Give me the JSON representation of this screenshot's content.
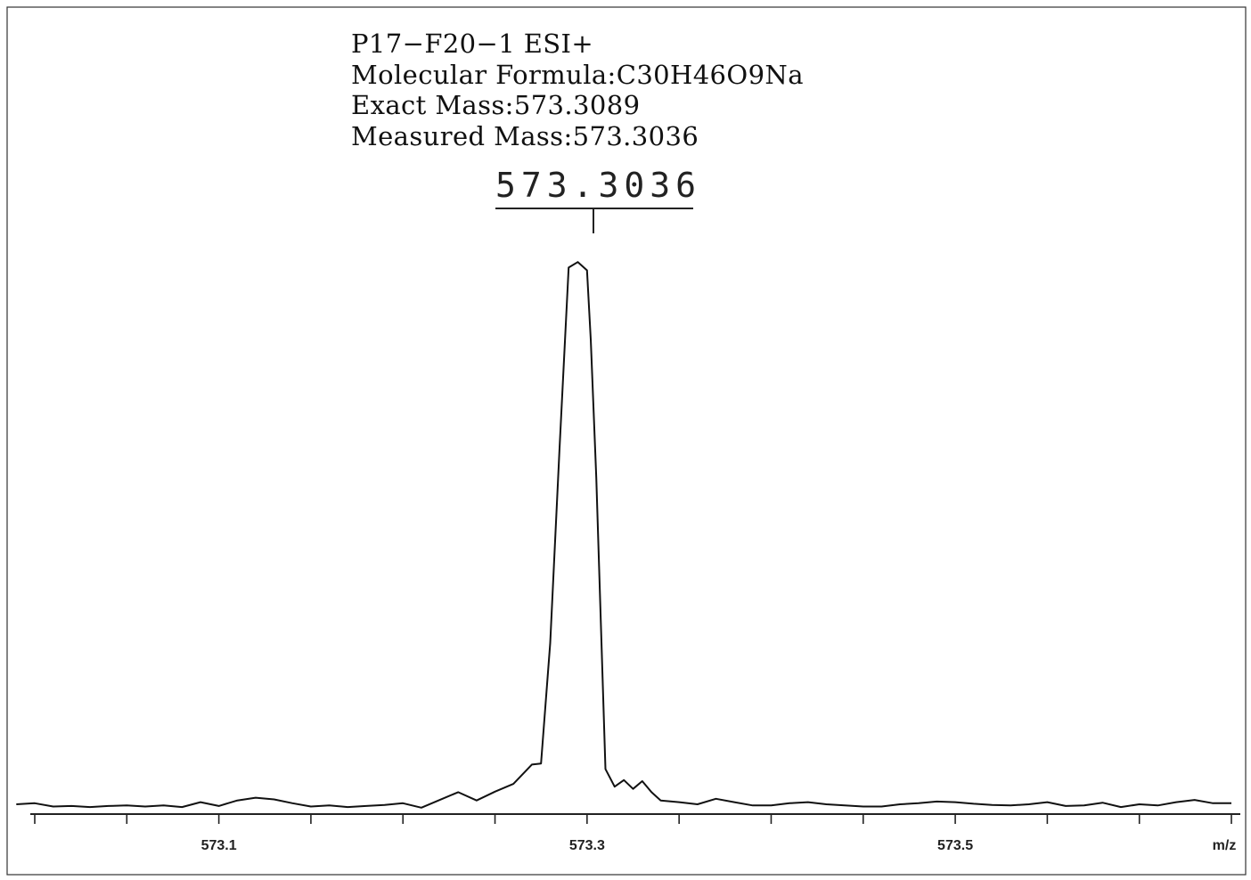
{
  "header": {
    "line1": "P17−F20−1 ESI+",
    "line2": "Molecular Formula:C30H46O9Na",
    "line3": "Exact Mass:573.3089",
    "line4": "Measured Mass:573.3036"
  },
  "peak_label": "573.3036",
  "chart_data": {
    "type": "line",
    "title": "P17−F20−1 ESI+",
    "xlabel": "m/z",
    "ylabel": "",
    "xlim": [
      573.0,
      573.65
    ],
    "ylim": [
      0,
      100
    ],
    "grid": false,
    "tick_labels": [
      {
        "x": 573.1,
        "label": "573.1"
      },
      {
        "x": 573.3,
        "label": "573.3"
      },
      {
        "x": 573.5,
        "label": "573.5"
      }
    ],
    "minor_ticks": [
      573.0,
      573.05,
      573.1,
      573.15,
      573.2,
      573.25,
      573.3,
      573.35,
      573.4,
      573.45,
      573.5,
      573.55,
      573.6,
      573.65
    ],
    "axis_end_label": "m/z",
    "peak": {
      "x": 573.3036,
      "label": "573.3036"
    },
    "series": [
      {
        "x": [
          572.99,
          573.0,
          573.01,
          573.02,
          573.03,
          573.04,
          573.05,
          573.06,
          573.07,
          573.08,
          573.09,
          573.1,
          573.11,
          573.12,
          573.13,
          573.14,
          573.15,
          573.16,
          573.17,
          573.18,
          573.19,
          573.2,
          573.21,
          573.22,
          573.23,
          573.24,
          573.25,
          573.26,
          573.27,
          573.275,
          573.28,
          573.285,
          573.29,
          573.295,
          573.3,
          573.302,
          573.305,
          573.31,
          573.315,
          573.32,
          573.325,
          573.33,
          573.335,
          573.34,
          573.35,
          573.36,
          573.37,
          573.38,
          573.39,
          573.4,
          573.41,
          573.42,
          573.43,
          573.44,
          573.45,
          573.46,
          573.47,
          573.48,
          573.49,
          573.5,
          573.51,
          573.52,
          573.53,
          573.54,
          573.55,
          573.56,
          573.57,
          573.58,
          573.59,
          573.6,
          573.61,
          573.62,
          573.63,
          573.64,
          573.65
        ],
        "values": [
          0.8,
          1.0,
          0.4,
          0.5,
          0.3,
          0.5,
          0.6,
          0.4,
          0.6,
          0.3,
          1.2,
          0.5,
          1.5,
          2.0,
          1.7,
          1.0,
          0.4,
          0.6,
          0.3,
          0.5,
          0.7,
          1.0,
          0.2,
          1.6,
          3.0,
          1.5,
          3.1,
          4.5,
          8.0,
          8.2,
          30.0,
          65.0,
          98.0,
          99.0,
          97.5,
          85.0,
          60.0,
          7.2,
          4.0,
          5.2,
          3.6,
          5.0,
          3.0,
          1.5,
          1.2,
          0.8,
          1.8,
          1.2,
          0.6,
          0.6,
          1.0,
          1.2,
          0.8,
          0.6,
          0.4,
          0.4,
          0.8,
          1.0,
          1.3,
          1.2,
          0.9,
          0.7,
          0.6,
          0.8,
          1.2,
          0.5,
          0.6,
          1.1,
          0.3,
          0.8,
          0.6,
          1.2,
          1.6,
          1.0,
          1.0
        ]
      }
    ]
  }
}
